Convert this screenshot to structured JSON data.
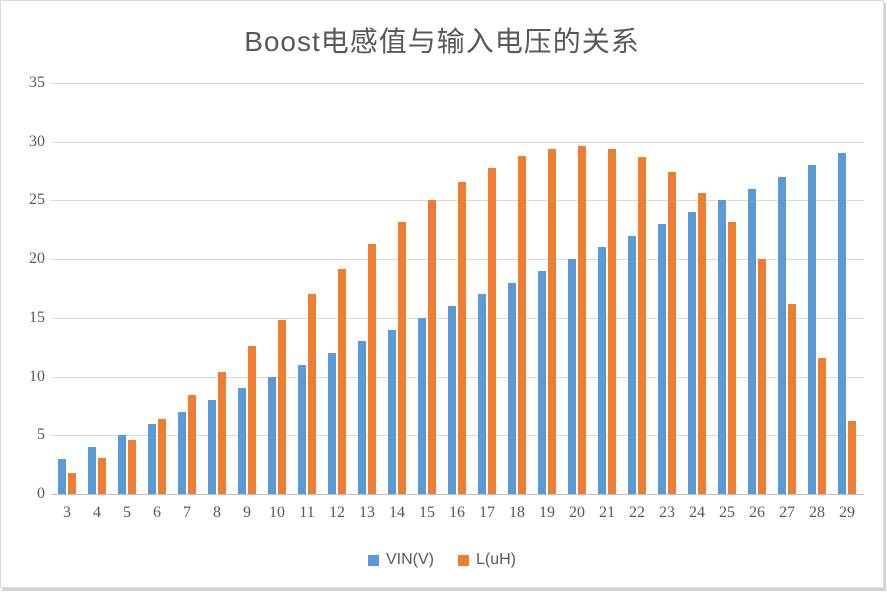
{
  "chart_data": {
    "type": "bar",
    "title": "Boost电感值与输入电压的关系",
    "xlabel": "",
    "ylabel": "",
    "categories": [
      3,
      4,
      5,
      6,
      7,
      8,
      9,
      10,
      11,
      12,
      13,
      14,
      15,
      16,
      17,
      18,
      19,
      20,
      21,
      22,
      23,
      24,
      25,
      26,
      27,
      28,
      29
    ],
    "series": [
      {
        "name": "VIN(V)",
        "color": "#5B9BD5",
        "values": [
          3,
          4,
          5,
          6,
          7,
          8,
          9,
          10,
          11,
          12,
          13,
          14,
          15,
          16,
          17,
          18,
          19,
          20,
          21,
          22,
          23,
          24,
          25,
          26,
          27,
          28,
          29
        ]
      },
      {
        "name": "L(uH)",
        "color": "#ED7D31",
        "values": [
          1.8,
          3.1,
          4.6,
          6.4,
          8.4,
          10.4,
          12.6,
          14.8,
          17.0,
          19.2,
          21.3,
          23.2,
          25.0,
          26.6,
          27.8,
          28.8,
          29.4,
          29.6,
          29.4,
          28.7,
          27.4,
          25.6,
          23.2,
          20.0,
          16.2,
          11.6,
          6.2
        ]
      }
    ],
    "ylim": [
      0,
      35
    ],
    "yticks": [
      0,
      5,
      10,
      15,
      20,
      25,
      30,
      35
    ],
    "grid": true,
    "legend_position": "bottom"
  },
  "colors": {
    "bar_blue": "#5B9BD5",
    "bar_orange": "#ED7D31",
    "gridline": "#d9d9d9",
    "axis_line": "#bfbfbf",
    "text": "#595959",
    "background": "#ffffff",
    "frame_border": "#dcdcdc"
  }
}
